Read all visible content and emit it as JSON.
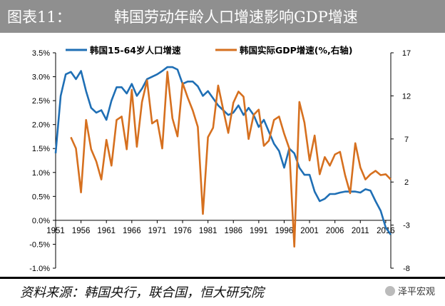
{
  "header": {
    "figure_no": "图表11：",
    "title": "韩国劳动年龄人口增速影响GDP增速"
  },
  "footer": {
    "source": "资料来源：韩国央行，联合国，恒大研究院",
    "watermark": "泽平宏观"
  },
  "colors": {
    "title_bg": "#8f8f8f",
    "population_line": "#1f6fb5",
    "gdp_line": "#d6701f"
  },
  "chart_data": {
    "type": "line",
    "x_tick_labels": [
      "1951",
      "1956",
      "1961",
      "1966",
      "1971",
      "1976",
      "1981",
      "1986",
      "1991",
      "1996",
      "2001",
      "2006",
      "2011",
      "2016"
    ],
    "xlim": [
      1951,
      2017
    ],
    "left_axis": {
      "ylim": [
        -1.0,
        3.5
      ],
      "ticks": [
        3.5,
        3.0,
        2.5,
        2.0,
        1.5,
        1.0,
        0.5,
        0.0,
        -0.5,
        -1.0
      ],
      "tick_labels": [
        "3.5%",
        "3.0%",
        "2.5%",
        "2.0%",
        "1.5%",
        "1.0%",
        "0.5%",
        "0.0%",
        "-0.5%",
        "-1.0%"
      ]
    },
    "right_axis": {
      "ylim": [
        -8,
        17
      ],
      "ticks": [
        17,
        12,
        7,
        2,
        -3,
        -8
      ],
      "tick_labels": [
        "17",
        "12",
        "7",
        "2",
        "-3",
        "-8"
      ]
    },
    "series": [
      {
        "name": "韩国15-64岁人口增速",
        "axis": "left",
        "x": [
          1951,
          1952,
          1953,
          1954,
          1955,
          1956,
          1957,
          1958,
          1959,
          1960,
          1961,
          1962,
          1963,
          1964,
          1965,
          1966,
          1967,
          1968,
          1969,
          1970,
          1971,
          1972,
          1973,
          1974,
          1975,
          1976,
          1977,
          1978,
          1979,
          1980,
          1981,
          1982,
          1983,
          1984,
          1985,
          1986,
          1987,
          1988,
          1989,
          1990,
          1991,
          1992,
          1993,
          1994,
          1995,
          1996,
          1997,
          1998,
          1999,
          2000,
          2001,
          2002,
          2003,
          2004,
          2005,
          2006,
          2007,
          2008,
          2009,
          2010,
          2011,
          2012,
          2013,
          2014,
          2015,
          2016,
          2017
        ],
        "values": [
          1.4,
          2.6,
          3.05,
          3.1,
          2.95,
          3.12,
          2.7,
          2.35,
          2.25,
          2.3,
          2.1,
          2.5,
          2.78,
          2.78,
          2.65,
          2.85,
          2.6,
          2.75,
          2.95,
          3.0,
          3.05,
          3.12,
          3.2,
          3.2,
          3.15,
          2.85,
          2.9,
          2.9,
          2.8,
          2.6,
          2.7,
          2.55,
          2.4,
          2.3,
          2.2,
          2.25,
          2.4,
          2.2,
          2.35,
          2.2,
          1.95,
          2.1,
          1.85,
          1.6,
          1.45,
          1.1,
          1.5,
          1.4,
          1.1,
          0.95,
          0.95,
          0.6,
          0.4,
          0.45,
          0.55,
          0.55,
          0.58,
          0.6,
          0.6,
          0.6,
          0.58,
          0.65,
          0.62,
          0.4,
          0.2,
          -0.15,
          -0.3
        ]
      },
      {
        "name": "韩国实际GDP增速(%,右轴)",
        "axis": "right",
        "x": [
          1954,
          1955,
          1956,
          1957,
          1958,
          1959,
          1960,
          1961,
          1962,
          1963,
          1964,
          1965,
          1966,
          1967,
          1968,
          1969,
          1970,
          1971,
          1972,
          1973,
          1974,
          1975,
          1976,
          1977,
          1978,
          1979,
          1980,
          1981,
          1982,
          1983,
          1984,
          1985,
          1986,
          1987,
          1988,
          1989,
          1990,
          1991,
          1992,
          1993,
          1994,
          1995,
          1996,
          1997,
          1998,
          1999,
          2000,
          2001,
          2002,
          2003,
          2004,
          2005,
          2006,
          2007,
          2008,
          2009,
          2010,
          2011,
          2012,
          2013,
          2014,
          2015,
          2016,
          2017
        ],
        "values": [
          7.2,
          5.9,
          0.8,
          9.2,
          5.8,
          4.4,
          2.3,
          6.9,
          3.9,
          9.2,
          9.6,
          5.8,
          12.7,
          6.1,
          11.3,
          13.8,
          8.8,
          9.2,
          5.9,
          14.8,
          9.4,
          7.3,
          13.5,
          11.8,
          10.3,
          8.4,
          -1.7,
          7.2,
          8.3,
          13.2,
          10.4,
          7.7,
          11.2,
          12.5,
          11.9,
          7.0,
          9.8,
          10.4,
          6.2,
          6.8,
          9.2,
          9.6,
          7.6,
          5.9,
          -5.5,
          11.3,
          8.9,
          4.5,
          7.4,
          2.9,
          4.9,
          3.9,
          5.2,
          5.5,
          2.8,
          0.7,
          6.5,
          3.7,
          2.3,
          2.9,
          3.3,
          2.8,
          2.9,
          2.3
        ]
      }
    ],
    "legend_position": "top-left",
    "grid": false
  }
}
